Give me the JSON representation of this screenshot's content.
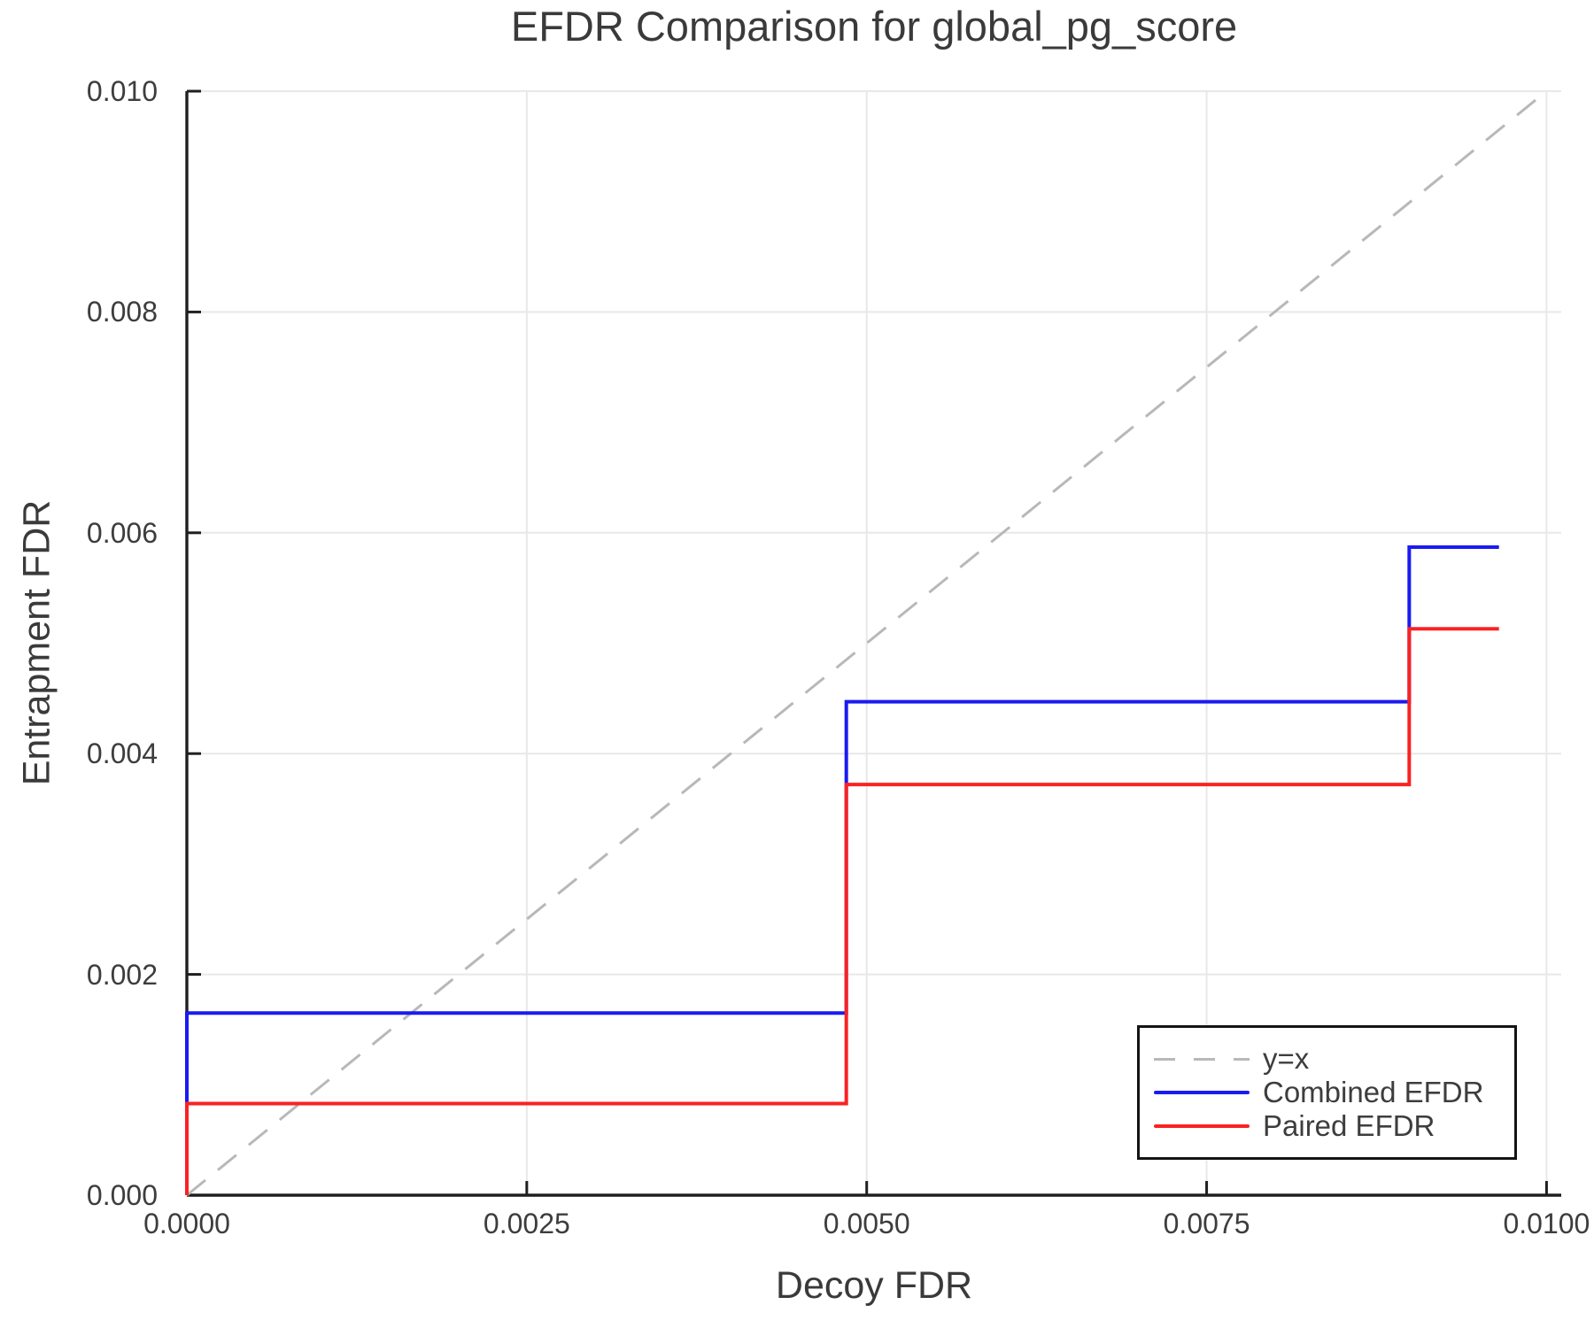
{
  "colors": {
    "background": "#ffffff",
    "grid": "#e8e8e8",
    "spine": "#1f1f1f",
    "title_text": "#3a3a3a",
    "tick_text": "#3d3d3d",
    "reference_line": "#b8b8b8",
    "combined_line": "#1a1af2",
    "paired_line": "#fa2222"
  },
  "chart_data": {
    "type": "line",
    "title": "EFDR Comparison for global_pg_score",
    "xlabel": "Decoy FDR",
    "ylabel": "Entrapment FDR",
    "xlim": [
      0,
      0.010108
    ],
    "ylim": [
      0,
      0.01
    ],
    "grid": true,
    "legend_position": "lower right",
    "x_ticks": {
      "values": [
        0,
        0.0025,
        0.005,
        0.0075,
        0.01
      ],
      "labels": [
        "0.0000",
        "0.0025",
        "0.0050",
        "0.0075",
        "0.0100"
      ]
    },
    "y_ticks": {
      "values": [
        0,
        0.002,
        0.004,
        0.006,
        0.008,
        0.01
      ],
      "labels": [
        "0.000",
        "0.002",
        "0.004",
        "0.006",
        "0.008",
        "0.010"
      ]
    },
    "series": [
      {
        "name": "y=x",
        "line_style": "dashed",
        "color": "#b8b8b8",
        "width": 3,
        "points": [
          [
            0,
            0
          ],
          [
            0.01,
            0.01
          ]
        ]
      },
      {
        "name": "Combined EFDR",
        "line_style": "solid",
        "color": "#1a1af2",
        "width": 4,
        "points": [
          [
            0,
            0
          ],
          [
            0,
            0.00165
          ],
          [
            0.00485,
            0.00165
          ],
          [
            0.00485,
            0.00447
          ],
          [
            0.00899,
            0.00447
          ],
          [
            0.00899,
            0.00587
          ],
          [
            0.00965,
            0.00587
          ]
        ]
      },
      {
        "name": "Paired EFDR",
        "line_style": "solid",
        "color": "#fa2222",
        "width": 4,
        "points": [
          [
            0,
            0
          ],
          [
            0,
            0.00083
          ],
          [
            0.00485,
            0.00083
          ],
          [
            0.00485,
            0.00372
          ],
          [
            0.00899,
            0.00372
          ],
          [
            0.00899,
            0.00513
          ],
          [
            0.00965,
            0.00513
          ]
        ]
      }
    ]
  }
}
